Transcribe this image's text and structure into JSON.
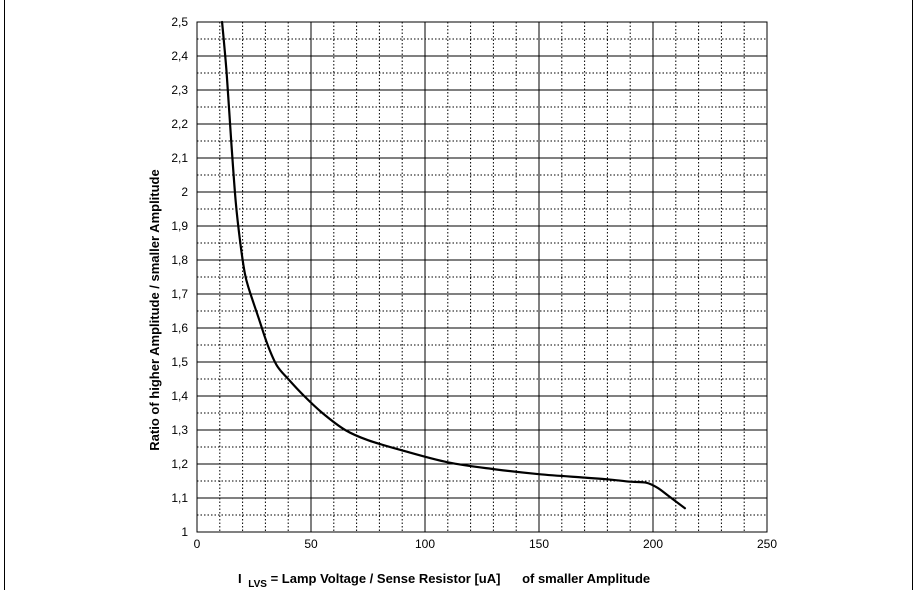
{
  "chart_data": {
    "type": "line",
    "title": "",
    "xlabel": {
      "prefix": "I",
      "subscript": "LVS",
      "text": " = Lamp Voltage / Sense Resistor [uA]",
      "suffix": "of smaller Amplitude"
    },
    "ylabel": "Ratio of higher Amplitude / smaller Amplitude",
    "xlim": [
      0,
      250
    ],
    "ylim": [
      1,
      2.5
    ],
    "xticks": [
      "0",
      "50",
      "100",
      "150",
      "200",
      "250"
    ],
    "yticks": [
      "1",
      "1,1",
      "1,2",
      "1,3",
      "1,4",
      "1,5",
      "1,6",
      "1,7",
      "1,8",
      "1,9",
      "2",
      "2,1",
      "2,2",
      "2,3",
      "2,4",
      "2,5"
    ],
    "grid": true,
    "legend": "none",
    "series": [
      {
        "color": "#000000",
        "x": [
          11,
          13,
          15,
          17,
          19,
          21,
          23,
          27,
          31,
          35,
          40,
          47,
          55,
          65,
          75,
          90,
          110,
          130,
          150,
          170,
          180,
          190,
          197,
          202,
          207,
          214
        ],
        "y": [
          2.5,
          2.35,
          2.15,
          1.97,
          1.85,
          1.76,
          1.71,
          1.63,
          1.55,
          1.49,
          1.45,
          1.4,
          1.35,
          1.3,
          1.27,
          1.24,
          1.205,
          1.185,
          1.17,
          1.16,
          1.155,
          1.148,
          1.145,
          1.13,
          1.105,
          1.07
        ]
      }
    ]
  }
}
